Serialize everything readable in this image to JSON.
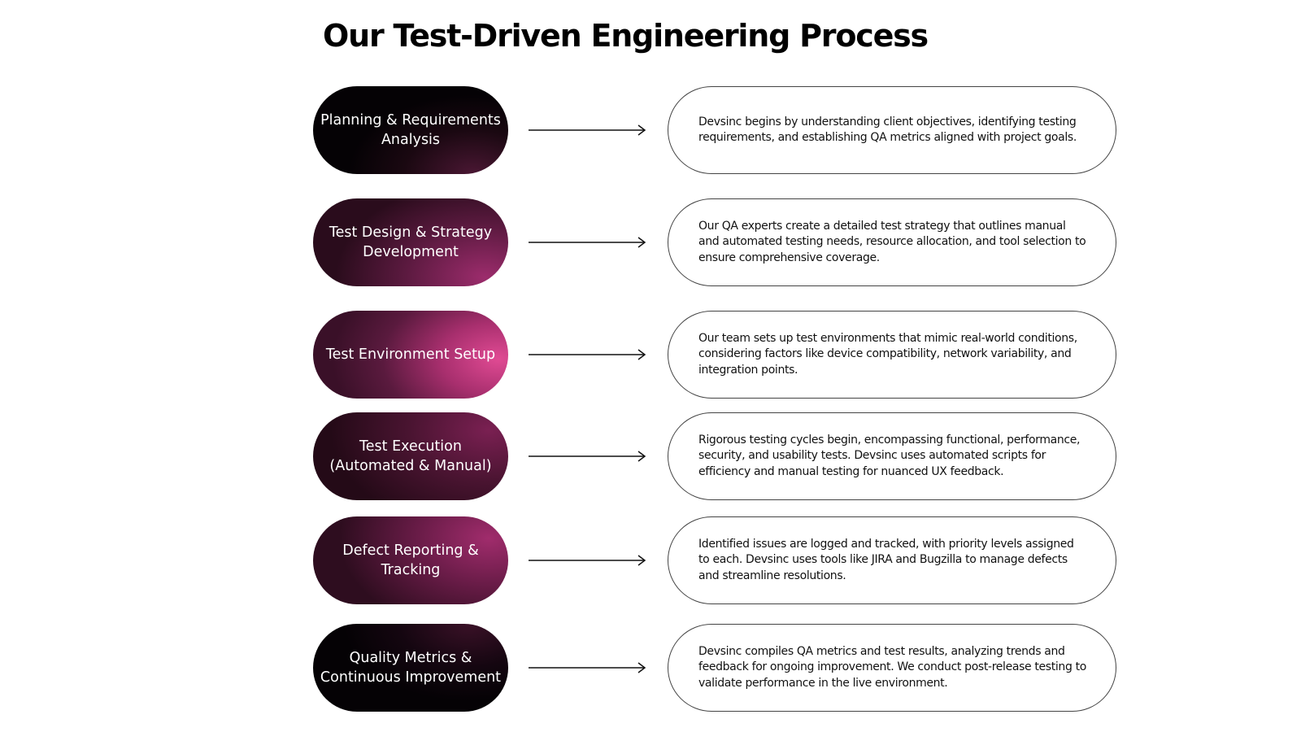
{
  "title": "Our Test-Driven Engineering Process",
  "steps": [
    {
      "label": "Planning & Requirements Analysis",
      "description": "Devsinc begins by understanding client objectives, identifying testing requirements, and establishing QA metrics aligned with project goals."
    },
    {
      "label": "Test Design & Strategy Development",
      "description": "Our QA experts create a detailed test strategy that outlines manual and automated testing needs, resource allocation, and tool selection to ensure comprehensive coverage."
    },
    {
      "label": "Test Environment Setup",
      "description": "Our team sets up test environments that mimic real-world conditions, considering factors like device compatibility, network variability, and integration points."
    },
    {
      "label": "Test Execution (Automated & Manual)",
      "description": "Rigorous testing cycles begin, encompassing functional, performance, security, and usability tests. Devsinc uses automated scripts for efficiency and manual testing for nuanced UX feedback."
    },
    {
      "label": "Defect Reporting & Tracking",
      "description": "Identified issues are logged and tracked, with priority levels assigned to each. Devsinc uses tools like JIRA and Bugzilla to manage defects and streamline resolutions."
    },
    {
      "label": "Quality Metrics & Continuous Improvement",
      "description": "Devsinc compiles QA metrics and test results, analyzing trends and feedback for ongoing improvement. We conduct post-release testing to validate performance in the live environment."
    }
  ],
  "colors": {
    "pill_dark": "#050205",
    "pill_plum": "#2a0c1c",
    "pill_magenta": "#8c2462",
    "pill_pink": "#e04a93",
    "outline": "#444444",
    "arrow": "#111111"
  }
}
